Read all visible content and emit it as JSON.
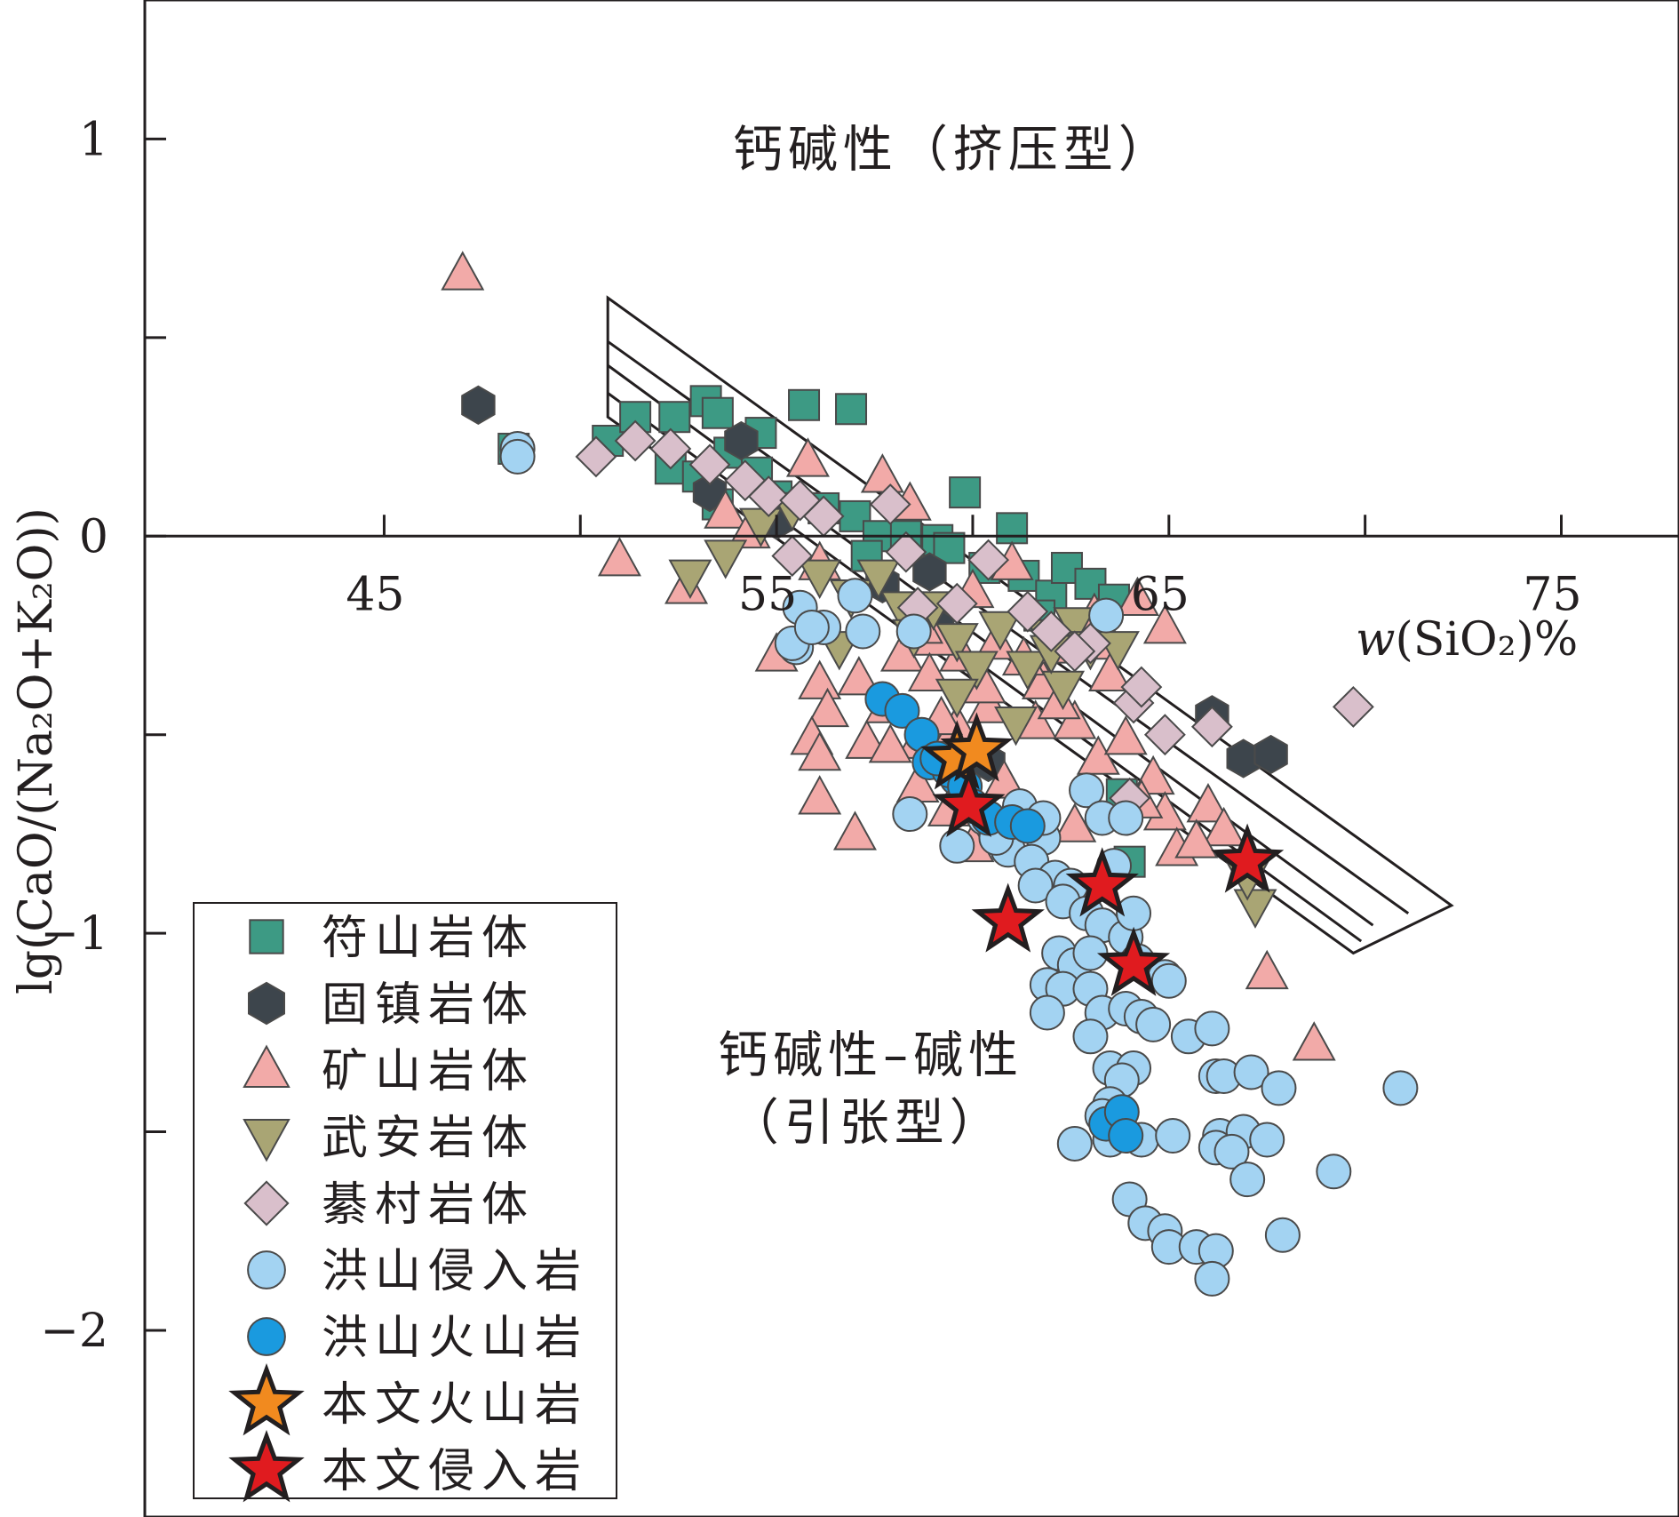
{
  "chart_data": {
    "type": "scatter",
    "xlabel": "w(SiO₂)%",
    "ylabel": "lg(CaO/(Na₂O+K₂O))",
    "x_ticks": [
      45,
      55,
      65,
      75
    ],
    "x_tick_labels": [
      "45",
      "55",
      "65",
      "75"
    ],
    "y_ticks": [
      1,
      0,
      -1,
      -2
    ],
    "y_tick_labels": [
      "1",
      "0",
      "−1",
      "−2"
    ],
    "xlim": [
      38.9,
      78
    ],
    "ylim": [
      -2.47,
      1.35
    ],
    "grid": false,
    "legend_position": "bottom-left",
    "annotations": [
      {
        "text": "钙碱性（挤压型）",
        "x": 59.5,
        "y": 0.93
      },
      {
        "text": "钙碱性–碱性",
        "x": 57.4,
        "y": -1.35
      },
      {
        "text": "（引张型）",
        "x": 57.3,
        "y": -1.52
      }
    ],
    "field_polygon": [
      [
        50.7,
        0.6
      ],
      [
        72.2,
        -0.93
      ],
      [
        69.7,
        -1.05
      ],
      [
        50.7,
        0.3
      ]
    ],
    "field_lines": [
      [
        [
          50.7,
          0.49
        ],
        [
          71.1,
          -0.95
        ]
      ],
      [
        [
          50.7,
          0.43
        ],
        [
          70.2,
          -0.98
        ]
      ],
      [
        [
          50.7,
          0.36
        ],
        [
          69.9,
          -1.02
        ]
      ]
    ],
    "series": [
      {
        "name": "符山岩体",
        "marker": "square",
        "color": "#3d9a84",
        "points": [
          [
            48.3,
            0.22
          ],
          [
            50.7,
            0.24
          ],
          [
            51.4,
            0.3
          ],
          [
            52.4,
            0.3
          ],
          [
            53.2,
            0.34
          ],
          [
            53.5,
            0.31
          ],
          [
            54.6,
            0.26
          ],
          [
            53.8,
            0.21
          ],
          [
            52.3,
            0.17
          ],
          [
            53.0,
            0.15
          ],
          [
            54.5,
            0.16
          ],
          [
            55.7,
            0.33
          ],
          [
            56.9,
            0.32
          ],
          [
            53.5,
            0.08
          ],
          [
            55.0,
            0.1
          ],
          [
            56.2,
            0.07
          ],
          [
            57.0,
            0.05
          ],
          [
            57.6,
            0.0
          ],
          [
            58.3,
            0.0
          ],
          [
            59.1,
            -0.01
          ],
          [
            59.8,
            0.11
          ],
          [
            61.0,
            0.02
          ],
          [
            60.3,
            -0.08
          ],
          [
            61.3,
            -0.1
          ],
          [
            62.0,
            -0.15
          ],
          [
            62.4,
            -0.08
          ],
          [
            63.0,
            -0.12
          ],
          [
            63.6,
            -0.16
          ],
          [
            59.4,
            -0.03
          ],
          [
            57.3,
            -0.05
          ],
          [
            61.7,
            -0.2
          ],
          [
            63.8,
            -0.65
          ],
          [
            64.0,
            -0.82
          ]
        ]
      },
      {
        "name": "固镇岩体",
        "marker": "hexagon",
        "color": "#3d454c",
        "points": [
          [
            47.4,
            0.33
          ],
          [
            54.1,
            0.24
          ],
          [
            53.3,
            0.11
          ],
          [
            55.0,
            0.04
          ],
          [
            57.7,
            -0.12
          ],
          [
            58.9,
            -0.09
          ],
          [
            59.1,
            -0.23
          ],
          [
            60.4,
            -0.57
          ],
          [
            66.1,
            -0.45
          ],
          [
            66.9,
            -0.56
          ],
          [
            67.6,
            -0.55
          ]
        ]
      },
      {
        "name": "矿山岩体",
        "marker": "triangle",
        "color": "#f2aaa8",
        "points": [
          [
            47.0,
            0.66
          ],
          [
            51.0,
            -0.06
          ],
          [
            52.7,
            -0.13
          ],
          [
            53.7,
            0.06
          ],
          [
            54.3,
            0.01
          ],
          [
            55.8,
            0.19
          ],
          [
            56.1,
            -0.07
          ],
          [
            57.7,
            0.15
          ],
          [
            58.4,
            0.08
          ],
          [
            55.0,
            -0.3
          ],
          [
            56.1,
            -0.37
          ],
          [
            56.3,
            -0.44
          ],
          [
            55.9,
            -0.51
          ],
          [
            57.1,
            -0.36
          ],
          [
            57.8,
            -0.43
          ],
          [
            58.2,
            -0.3
          ],
          [
            56.1,
            -0.55
          ],
          [
            57.3,
            -0.52
          ],
          [
            58.6,
            -0.52
          ],
          [
            59.6,
            -0.48
          ],
          [
            60.4,
            -0.43
          ],
          [
            56.1,
            -0.66
          ],
          [
            57.0,
            -0.75
          ],
          [
            57.9,
            -0.53
          ],
          [
            58.6,
            -0.63
          ],
          [
            59.4,
            -0.69
          ],
          [
            60.0,
            -0.78
          ],
          [
            60.8,
            -0.62
          ],
          [
            61.6,
            -0.47
          ],
          [
            61.8,
            -0.37
          ],
          [
            62.6,
            -0.47
          ],
          [
            63.2,
            -0.56
          ],
          [
            63.9,
            -0.51
          ],
          [
            64.6,
            -0.61
          ],
          [
            64.9,
            -0.7
          ],
          [
            65.2,
            -0.79
          ],
          [
            66.0,
            -0.68
          ],
          [
            66.4,
            -0.74
          ],
          [
            65.7,
            -0.77
          ],
          [
            62.6,
            -0.73
          ],
          [
            64.3,
            -0.67
          ],
          [
            59.7,
            -0.3
          ],
          [
            60.6,
            -0.27
          ],
          [
            61.3,
            -0.31
          ],
          [
            62.2,
            -0.28
          ],
          [
            63.2,
            -0.27
          ],
          [
            63.5,
            -0.35
          ],
          [
            64.9,
            -0.23
          ],
          [
            61.0,
            -0.07
          ],
          [
            60.0,
            -0.14
          ],
          [
            59.0,
            -0.26
          ],
          [
            58.7,
            -0.23
          ],
          [
            58.9,
            -0.35
          ],
          [
            64.2,
            -0.16
          ],
          [
            67.5,
            -1.1
          ],
          [
            68.7,
            -1.28
          ],
          [
            63.1,
            -0.2
          ],
          [
            62.2,
            -0.42
          ],
          [
            59.2,
            -0.46
          ],
          [
            60.3,
            -0.38
          ]
        ]
      },
      {
        "name": "武安岩体",
        "marker": "triangle-down",
        "color": "#a9a574",
        "points": [
          [
            52.8,
            -0.1
          ],
          [
            53.7,
            -0.05
          ],
          [
            54.6,
            0.03
          ],
          [
            55.4,
            0.07
          ],
          [
            56.1,
            -0.1
          ],
          [
            56.6,
            -0.28
          ],
          [
            56.9,
            -0.15
          ],
          [
            57.6,
            -0.1
          ],
          [
            58.2,
            -0.18
          ],
          [
            58.5,
            -0.25
          ],
          [
            59.0,
            -0.18
          ],
          [
            59.6,
            -0.26
          ],
          [
            60.1,
            -0.33
          ],
          [
            60.7,
            -0.23
          ],
          [
            61.4,
            -0.33
          ],
          [
            61.9,
            -0.25
          ],
          [
            62.3,
            -0.38
          ],
          [
            62.6,
            -0.22
          ],
          [
            63.0,
            -0.28
          ],
          [
            63.7,
            -0.28
          ],
          [
            59.6,
            -0.4
          ],
          [
            61.1,
            -0.47
          ],
          [
            62.0,
            -0.29
          ],
          [
            67.2,
            -0.93
          ],
          [
            67.0,
            -0.86
          ]
        ]
      },
      {
        "name": "綦村岩体",
        "marker": "diamond",
        "color": "#d9bfcb",
        "points": [
          [
            50.4,
            0.2
          ],
          [
            51.4,
            0.24
          ],
          [
            52.3,
            0.22
          ],
          [
            53.3,
            0.18
          ],
          [
            54.2,
            0.14
          ],
          [
            54.8,
            0.1
          ],
          [
            55.6,
            0.09
          ],
          [
            56.2,
            0.05
          ],
          [
            55.4,
            -0.05
          ],
          [
            57.9,
            0.08
          ],
          [
            58.3,
            -0.04
          ],
          [
            58.6,
            -0.18
          ],
          [
            59.6,
            -0.17
          ],
          [
            60.4,
            -0.06
          ],
          [
            61.4,
            -0.19
          ],
          [
            62.0,
            -0.24
          ],
          [
            63.0,
            -0.27
          ],
          [
            64.1,
            -0.42
          ],
          [
            64.3,
            -0.38
          ],
          [
            64.9,
            -0.5
          ],
          [
            66.1,
            -0.48
          ],
          [
            69.7,
            -0.43
          ],
          [
            62.6,
            -0.29
          ],
          [
            64.0,
            -0.66
          ]
        ]
      },
      {
        "name": "洪山侵入岩",
        "marker": "circle",
        "color": "#a3d3f2",
        "points": [
          [
            48.4,
            0.22
          ],
          [
            48.4,
            0.2
          ],
          [
            55.6,
            -0.18
          ],
          [
            56.2,
            -0.23
          ],
          [
            55.5,
            -0.28
          ],
          [
            55.4,
            -0.27
          ],
          [
            55.9,
            -0.23
          ],
          [
            57.0,
            -0.15
          ],
          [
            57.2,
            -0.24
          ],
          [
            58.5,
            -0.24
          ],
          [
            61.2,
            -0.68
          ],
          [
            61.1,
            -0.73
          ],
          [
            60.9,
            -0.79
          ],
          [
            61.8,
            -0.76
          ],
          [
            61.5,
            -0.82
          ],
          [
            62.1,
            -0.86
          ],
          [
            61.6,
            -0.88
          ],
          [
            62.5,
            -0.88
          ],
          [
            62.3,
            -0.92
          ],
          [
            63.6,
            -0.83
          ],
          [
            62.9,
            -0.95
          ],
          [
            63.3,
            -0.98
          ],
          [
            62.2,
            -1.05
          ],
          [
            62.6,
            -1.08
          ],
          [
            63.0,
            -1.05
          ],
          [
            63.9,
            -1.01
          ],
          [
            64.1,
            -0.95
          ],
          [
            64.2,
            -1.07
          ],
          [
            64.9,
            -1.11
          ],
          [
            65.0,
            -1.12
          ],
          [
            61.9,
            -1.13
          ],
          [
            62.3,
            -1.14
          ],
          [
            63.0,
            -1.14
          ],
          [
            63.3,
            -1.2
          ],
          [
            63.9,
            -1.19
          ],
          [
            64.3,
            -1.21
          ],
          [
            61.9,
            -1.2
          ],
          [
            63.0,
            -1.26
          ],
          [
            64.6,
            -1.23
          ],
          [
            65.5,
            -1.26
          ],
          [
            66.1,
            -1.24
          ],
          [
            63.5,
            -1.34
          ],
          [
            64.1,
            -1.34
          ],
          [
            63.8,
            -1.37
          ],
          [
            63.5,
            -1.43
          ],
          [
            63.3,
            -1.46
          ],
          [
            66.2,
            -1.36
          ],
          [
            66.4,
            -1.36
          ],
          [
            67.1,
            -1.35
          ],
          [
            67.8,
            -1.39
          ],
          [
            63.5,
            -1.52
          ],
          [
            62.6,
            -1.53
          ],
          [
            64.3,
            -1.52
          ],
          [
            65.1,
            -1.51
          ],
          [
            66.3,
            -1.51
          ],
          [
            66.9,
            -1.5
          ],
          [
            66.2,
            -1.54
          ],
          [
            66.6,
            -1.55
          ],
          [
            67.5,
            -1.52
          ],
          [
            67.0,
            -1.62
          ],
          [
            64.0,
            -1.67
          ],
          [
            64.4,
            -1.73
          ],
          [
            64.9,
            -1.75
          ],
          [
            65.0,
            -1.79
          ],
          [
            65.7,
            -1.79
          ],
          [
            66.2,
            -1.8
          ],
          [
            66.1,
            -1.87
          ],
          [
            67.9,
            -1.76
          ],
          [
            70.9,
            -1.39
          ],
          [
            69.2,
            -1.6
          ],
          [
            58.4,
            -0.7
          ],
          [
            59.6,
            -0.78
          ],
          [
            60.3,
            -0.71
          ],
          [
            60.6,
            -0.76
          ],
          [
            61.8,
            -0.71
          ],
          [
            62.9,
            -0.64
          ],
          [
            63.3,
            -0.71
          ],
          [
            63.9,
            -0.71
          ],
          [
            63.4,
            -0.2
          ]
        ]
      },
      {
        "name": "洪山火山岩",
        "marker": "circle",
        "color": "#1a9adf",
        "points": [
          [
            57.7,
            -0.41
          ],
          [
            58.2,
            -0.44
          ],
          [
            58.7,
            -0.5
          ],
          [
            58.9,
            -0.57
          ],
          [
            59.6,
            -0.61
          ],
          [
            59.4,
            -0.59
          ],
          [
            59.8,
            -0.63
          ],
          [
            60.0,
            -0.68
          ],
          [
            60.4,
            -0.71
          ],
          [
            61.0,
            -0.72
          ],
          [
            61.4,
            -0.73
          ],
          [
            63.4,
            -1.48
          ],
          [
            63.8,
            -1.45
          ],
          [
            63.9,
            -1.51
          ],
          [
            59.1,
            -0.56
          ]
        ]
      },
      {
        "name": "本文火山岩",
        "marker": "star",
        "color": "#f18a1f",
        "points": [
          [
            59.6,
            -0.56
          ],
          [
            60.1,
            -0.54
          ]
        ]
      },
      {
        "name": "本文侵入岩",
        "marker": "star",
        "color": "#e01b1f",
        "points": [
          [
            59.9,
            -0.68
          ],
          [
            60.9,
            -0.97
          ],
          [
            63.3,
            -0.88
          ],
          [
            64.1,
            -1.08
          ],
          [
            67.0,
            -0.82
          ]
        ]
      }
    ]
  }
}
